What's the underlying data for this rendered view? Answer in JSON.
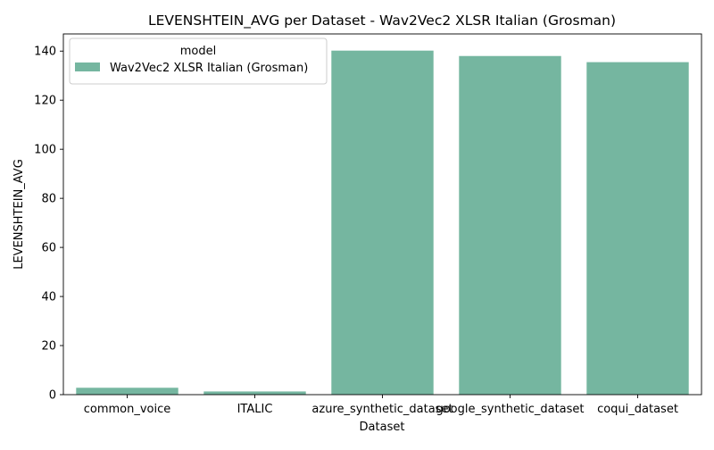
{
  "chart_data": {
    "type": "bar",
    "title": "LEVENSHTEIN_AVG per Dataset - Wav2Vec2 XLSR Italian (Grosman)",
    "xlabel": "Dataset",
    "ylabel": "LEVENSHTEIN_AVG",
    "categories": [
      "common_voice",
      "ITALIC",
      "azure_synthetic_dataset",
      "google_synthetic_dataset",
      "coqui_dataset"
    ],
    "series": [
      {
        "name": "Wav2Vec2 XLSR Italian (Grosman)",
        "values": [
          2.8,
          1.3,
          140.2,
          138.0,
          135.5
        ],
        "color": "#75b6a0"
      }
    ],
    "ylim": [
      0,
      147
    ],
    "yticks": [
      0,
      20,
      40,
      60,
      80,
      100,
      120,
      140
    ],
    "legend": {
      "title": "model",
      "placement": "top-left"
    },
    "grid": false
  }
}
